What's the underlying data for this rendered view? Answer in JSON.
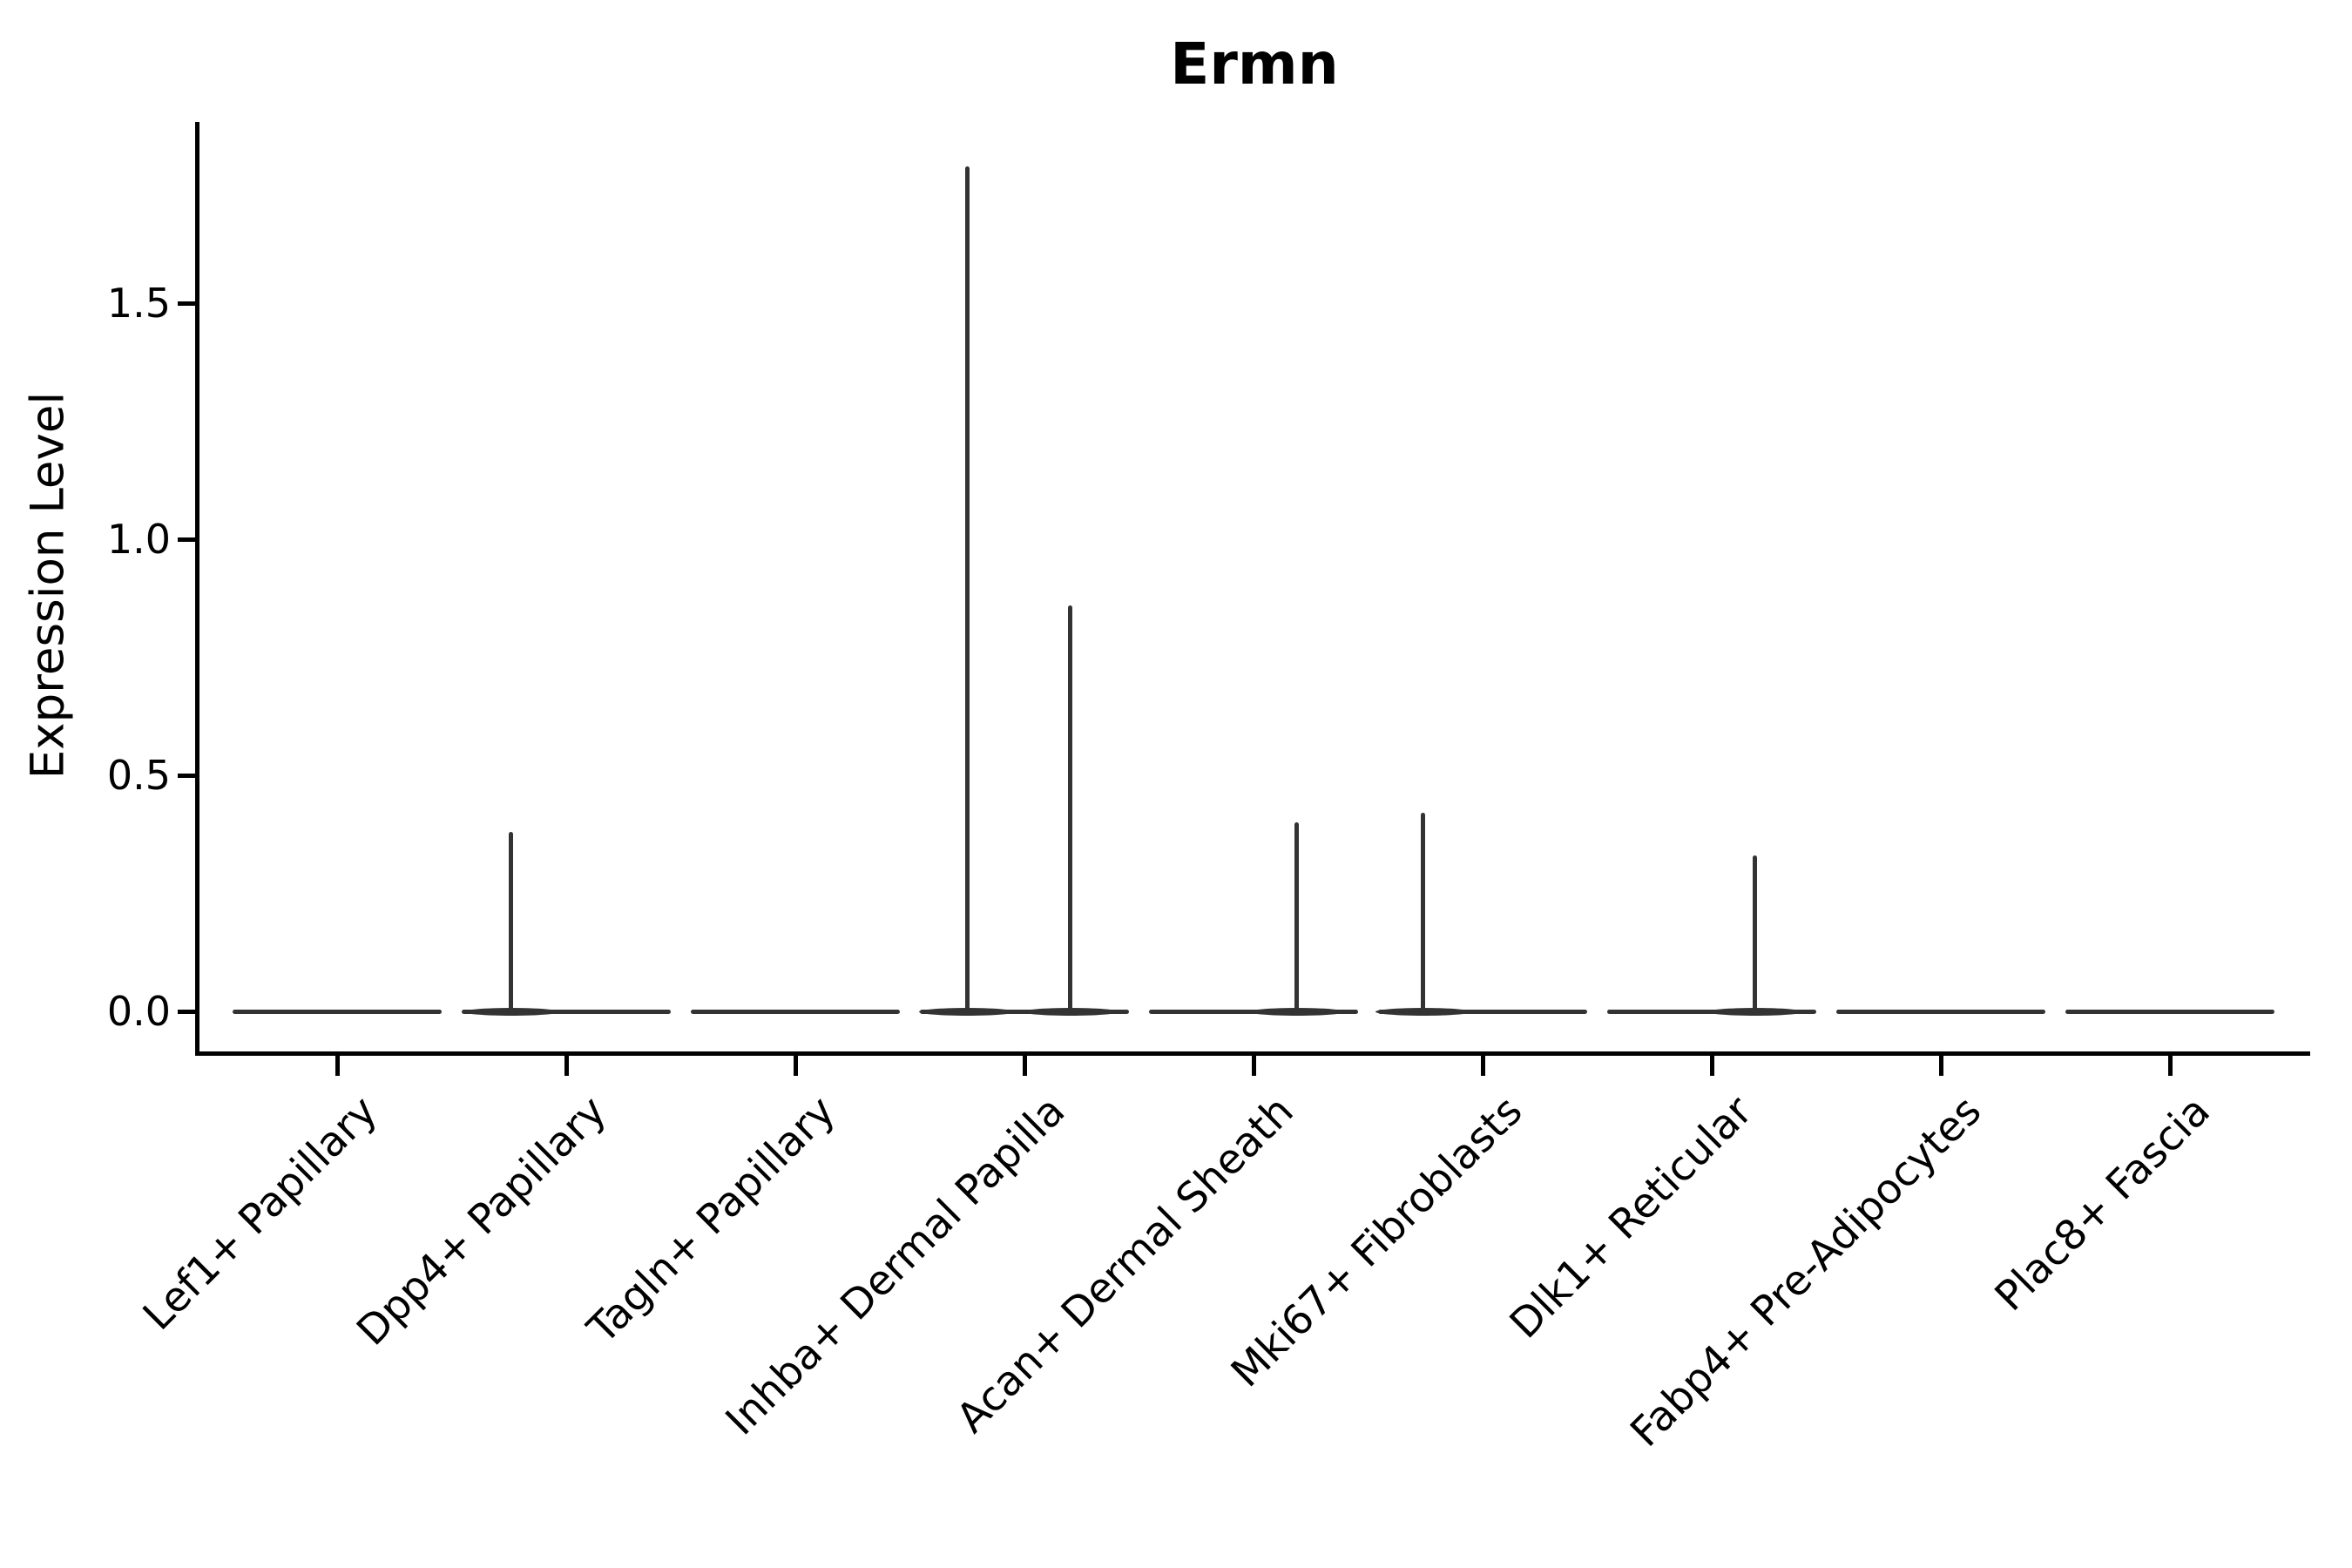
{
  "title": "Ermn",
  "axes": {
    "ylabel": "Expression Level",
    "ytick_labels": [
      "0.0",
      "0.5",
      "1.0",
      "1.5"
    ]
  },
  "colors": {
    "background": "#ffffff",
    "axis": "#000000",
    "text": "#000000",
    "violin_line": "#333333"
  },
  "chart_data": {
    "type": "violin",
    "title": "Ermn",
    "xlabel": "",
    "ylabel": "Expression Level",
    "ylim": [
      -0.09,
      1.88
    ],
    "ytick_values": [
      0.0,
      0.5,
      1.0,
      1.5
    ],
    "ytick_labels": [
      "0.0",
      "0.5",
      "1.0",
      "1.5"
    ],
    "grid": false,
    "legend": false,
    "baseline_value": 0.0,
    "violin_half_width": 0.455,
    "categories": [
      "Lef1+ Papillary",
      "Dpp4+ Papillary",
      "Tagln+ Papillary",
      "Inhba+ Dermal Papilla",
      "Acan+ Dermal Sheath",
      "Mki67+ Fibroblasts",
      "Dlk1+ Reticular",
      "Fabp4+ Pre-Adipocytes",
      "Plac8+ Fascia"
    ],
    "series": [
      {
        "name": "Lef1+ Papillary",
        "density_collapsed_at": 0.0,
        "spikes": []
      },
      {
        "name": "Dpp4+ Papillary",
        "density_collapsed_at": 0.0,
        "spikes": [
          {
            "x_offset": -0.24,
            "value": 0.38
          }
        ]
      },
      {
        "name": "Tagln+ Papillary",
        "density_collapsed_at": 0.0,
        "spikes": []
      },
      {
        "name": "Inhba+ Dermal Papilla",
        "density_collapsed_at": 0.0,
        "spikes": [
          {
            "x_offset": -0.25,
            "value": 1.79
          },
          {
            "x_offset": 0.2,
            "value": 0.86
          }
        ]
      },
      {
        "name": "Acan+ Dermal Sheath",
        "density_collapsed_at": 0.0,
        "spikes": [
          {
            "x_offset": 0.19,
            "value": 0.4
          }
        ]
      },
      {
        "name": "Mki67+ Fibroblasts",
        "density_collapsed_at": 0.0,
        "spikes": [
          {
            "x_offset": -0.26,
            "value": 0.42
          }
        ]
      },
      {
        "name": "Dlk1+ Reticular",
        "density_collapsed_at": 0.0,
        "spikes": [
          {
            "x_offset": 0.19,
            "value": 0.33
          }
        ]
      },
      {
        "name": "Fabp4+ Pre-Adipocytes",
        "density_collapsed_at": 0.0,
        "spikes": []
      },
      {
        "name": "Plac8+ Fascia",
        "density_collapsed_at": 0.0,
        "spikes": []
      }
    ]
  }
}
